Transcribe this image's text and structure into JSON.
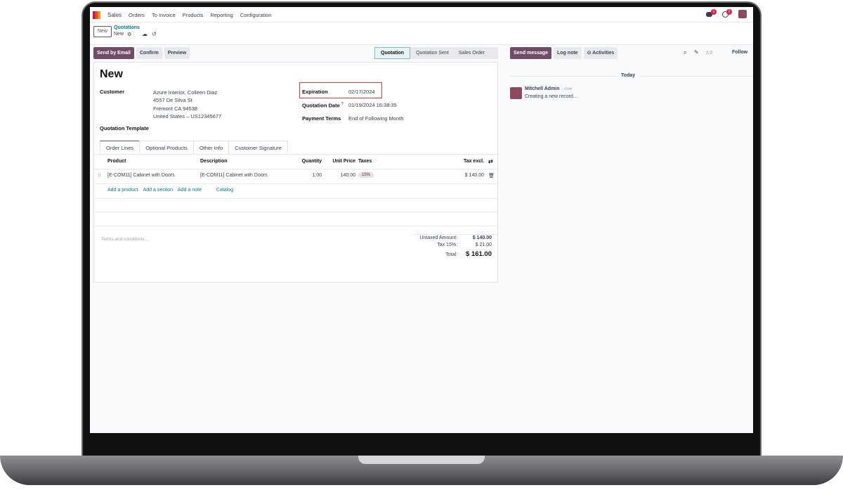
{
  "nav": {
    "app": "Sales",
    "menu": [
      "Orders",
      "To Invoice",
      "Products",
      "Reporting",
      "Configuration"
    ],
    "messages_badge": "1",
    "activities_badge": "2"
  },
  "control": {
    "new_button": "New",
    "breadcrumb_parent": "Quotations",
    "breadcrumb_current": "New"
  },
  "actions": {
    "send_email": "Send by Email",
    "confirm": "Confirm",
    "preview": "Preview"
  },
  "statusbar": {
    "stages": [
      "Quotation",
      "Quotation Sent",
      "Sales Order"
    ],
    "active": "Quotation"
  },
  "chatter": {
    "send_message": "Send message",
    "log_note": "Log note",
    "activities": "Activities",
    "followers_count": "0",
    "follow": "Follow",
    "day": "Today",
    "author": "Mitchell Admin",
    "time": "- now",
    "message": "Creating a new record..."
  },
  "form": {
    "title": "New",
    "customer_label": "Customer",
    "customer_lines": [
      "Azure Interior, Colleen Diaz",
      "4557 De Silva St",
      "Fremont CA 94538",
      "United States – US12345677"
    ],
    "template_label": "Quotation Template",
    "expiration_label": "Expiration",
    "expiration": "02/17/2024",
    "quotation_date_label": "Quotation Date",
    "quotation_date_help": "?",
    "quotation_date": "01/19/2024 16:38:35",
    "payment_terms_label": "Payment Terms",
    "payment_terms": "End of Following Month",
    "highlight_color": "#e53935"
  },
  "tabs": [
    "Order Lines",
    "Optional Products",
    "Other Info",
    "Customer Signature"
  ],
  "table": {
    "headers": [
      "Product",
      "Description",
      "Quantity",
      "Unit Price",
      "Taxes",
      "Tax excl."
    ],
    "rows": [
      {
        "product": "[E-COM11] Cabinet with Doors",
        "description": "[E-COM11] Cabinet with Doors",
        "quantity": "1.00",
        "unit_price": "140.00",
        "taxes": "15%",
        "subtotal": "$ 140.00"
      }
    ],
    "add_links": [
      "Add a product",
      "Add a section",
      "Add a note",
      "Catalog"
    ]
  },
  "totals": {
    "terms_placeholder": "Terms and conditions...",
    "untaxed_label": "Untaxed Amount:",
    "untaxed": "$ 140.00",
    "tax_label": "Tax 15%:",
    "tax": "$ 21.00",
    "total_label": "Total:",
    "total": "$ 161.00"
  },
  "colors": {
    "brand": "#714b67",
    "link": "#017e84"
  }
}
